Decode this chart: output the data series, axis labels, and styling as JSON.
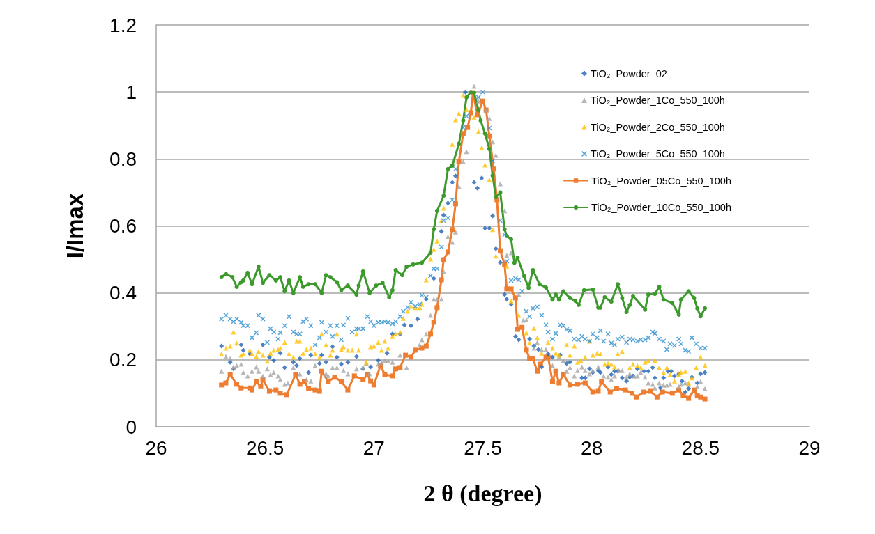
{
  "chart_data": {
    "type": "scatter",
    "xlabel": "2 θ (degree)",
    "ylabel": "I/Imax",
    "xlim": [
      26,
      29
    ],
    "xticks": [
      26,
      26.5,
      27,
      27.5,
      28,
      28.5,
      29
    ],
    "ylim": [
      0,
      1.2
    ],
    "yticks": [
      0,
      0.2,
      0.4,
      0.6,
      0.8,
      1,
      1.2
    ],
    "grid": "y",
    "legend": "top right",
    "series": [
      {
        "name": "TiO₂_Powder_02",
        "marker": "diamond",
        "color": "#1f63b5",
        "x": [
          26.3,
          26.34,
          26.355,
          26.39,
          26.4,
          26.43,
          26.49,
          26.52,
          26.54,
          26.57,
          26.59,
          26.63,
          26.645,
          26.66,
          26.7,
          26.71,
          26.75,
          26.76,
          26.78,
          26.81,
          26.83,
          26.85,
          26.88,
          26.92,
          26.95,
          26.985,
          27.02,
          27.06,
          27.085,
          27.12,
          27.14,
          27.17,
          27.2,
          27.24,
          27.275,
          27.31,
          27.32,
          27.34,
          27.36,
          27.375,
          27.42,
          27.46,
          27.475,
          27.495,
          27.51,
          27.53,
          27.545,
          27.56,
          27.58,
          27.6,
          27.61,
          27.63,
          27.65,
          27.665,
          27.715,
          27.735,
          27.755,
          27.77,
          27.8,
          27.82,
          27.855,
          27.885,
          27.9,
          27.955,
          27.97,
          27.99,
          28.005,
          28.03,
          28.04,
          28.075,
          28.09,
          28.105,
          28.12,
          28.14,
          28.16,
          28.175,
          28.19,
          28.21,
          28.24,
          28.26,
          28.28,
          28.29,
          28.315,
          28.33,
          28.35,
          28.365,
          28.38,
          28.4,
          28.415,
          28.43,
          28.445,
          28.46,
          28.485,
          28.5,
          28.52
        ],
        "values": [
          0.241,
          0.193,
          0.173,
          0.245,
          0.229,
          0.218,
          0.245,
          0.208,
          0.198,
          0.22,
          0.177,
          0.193,
          0.183,
          0.204,
          0.162,
          0.214,
          0.189,
          0.214,
          0.193,
          0.239,
          0.208,
          0.187,
          0.193,
          0.21,
          0.173,
          0.179,
          0.198,
          0.22,
          0.277,
          0.277,
          0.304,
          0.302,
          0.322,
          0.381,
          0.443,
          0.584,
          0.632,
          0.668,
          0.73,
          0.749,
          1.0,
          0.73,
          0.713,
          0.743,
          0.593,
          0.593,
          0.63,
          0.532,
          0.491,
          0.395,
          0.381,
          0.366,
          0.27,
          0.26,
          0.262,
          0.241,
          0.231,
          0.179,
          0.218,
          0.208,
          0.214,
          0.189,
          0.193,
          0.146,
          0.146,
          0.173,
          0.162,
          0.168,
          0.162,
          0.179,
          0.156,
          0.166,
          0.166,
          0.146,
          0.137,
          0.148,
          0.152,
          0.173,
          0.166,
          0.166,
          0.177,
          0.146,
          0.116,
          0.146,
          0.166,
          0.166,
          0.152,
          0.158,
          0.137,
          0.104,
          0.114,
          0.148,
          0.131,
          0.158,
          0.162
        ]
      },
      {
        "name": "TiO₂_Powder_1Co_550_100h",
        "marker": "triangle",
        "color": "#a5a5a5",
        "x": [
          26.3,
          26.32,
          26.34,
          26.355,
          26.37,
          26.39,
          26.4,
          26.42,
          26.44,
          26.46,
          26.47,
          26.49,
          26.51,
          26.525,
          26.54,
          26.56,
          26.57,
          26.59,
          26.605,
          26.63,
          26.66,
          26.69,
          26.71,
          26.73,
          26.78,
          26.79,
          26.81,
          26.83,
          26.86,
          26.88,
          26.92,
          26.95,
          26.965,
          26.98,
          27.02,
          27.035,
          27.05,
          27.065,
          27.085,
          27.12,
          27.15,
          27.21,
          27.22,
          27.24,
          27.26,
          27.275,
          27.29,
          27.31,
          27.32,
          27.34,
          27.36,
          27.375,
          27.39,
          27.41,
          27.425,
          27.46,
          27.48,
          27.515,
          27.53,
          27.545,
          27.56,
          27.58,
          27.6,
          27.61,
          27.63,
          27.665,
          27.685,
          27.7,
          27.735,
          27.75,
          27.77,
          27.79,
          27.82,
          27.85,
          27.87,
          27.885,
          27.9,
          27.92,
          27.935,
          27.955,
          27.97,
          27.99,
          28.005,
          28.03,
          28.055,
          28.075,
          28.09,
          28.105,
          28.125,
          28.14,
          28.16,
          28.175,
          28.195,
          28.21,
          28.225,
          28.245,
          28.26,
          28.28,
          28.29,
          28.31,
          28.33,
          28.345,
          28.36,
          28.4,
          28.41,
          28.43,
          28.445,
          28.485,
          28.5,
          28.52
        ],
        "values": [
          0.166,
          0.21,
          0.204,
          0.179,
          0.183,
          0.187,
          0.162,
          0.152,
          0.166,
          0.179,
          0.166,
          0.152,
          0.173,
          0.156,
          0.162,
          0.152,
          0.141,
          0.127,
          0.131,
          0.177,
          0.158,
          0.141,
          0.137,
          0.183,
          0.158,
          0.152,
          0.177,
          0.177,
          0.168,
          0.158,
          0.173,
          0.179,
          0.189,
          0.158,
          0.187,
          0.193,
          0.198,
          0.198,
          0.193,
          0.214,
          0.177,
          0.245,
          0.26,
          0.277,
          0.333,
          0.381,
          0.381,
          0.381,
          0.464,
          0.568,
          0.551,
          0.582,
          0.718,
          0.792,
          0.822,
          1.017,
          0.973,
          0.946,
          0.921,
          0.851,
          0.811,
          0.726,
          0.645,
          0.512,
          0.52,
          0.395,
          0.318,
          0.32,
          0.235,
          0.252,
          0.231,
          0.231,
          0.183,
          0.208,
          0.198,
          0.166,
          0.177,
          0.152,
          0.168,
          0.179,
          0.168,
          0.158,
          0.168,
          0.179,
          0.152,
          0.148,
          0.141,
          0.152,
          0.168,
          0.168,
          0.148,
          0.158,
          0.152,
          0.152,
          0.162,
          0.148,
          0.131,
          0.127,
          0.116,
          0.131,
          0.125,
          0.125,
          0.127,
          0.12,
          0.127,
          0.131,
          0.127,
          0.12,
          0.135,
          0.114
        ]
      },
      {
        "name": "TiO₂_Powder_2Co_550_100h",
        "marker": "triangle",
        "color": "#ffc000",
        "x": [
          26.3,
          26.32,
          26.34,
          26.355,
          26.37,
          26.39,
          26.4,
          26.43,
          26.44,
          26.46,
          26.47,
          26.49,
          26.51,
          26.525,
          26.54,
          26.56,
          26.57,
          26.59,
          26.61,
          26.63,
          26.645,
          26.66,
          26.675,
          26.69,
          26.71,
          26.73,
          26.75,
          26.76,
          26.78,
          26.8,
          26.81,
          26.83,
          26.85,
          26.86,
          26.88,
          26.9,
          26.92,
          26.93,
          26.965,
          26.985,
          27.0,
          27.02,
          27.035,
          27.05,
          27.065,
          27.085,
          27.1,
          27.12,
          27.135,
          27.155,
          27.17,
          27.19,
          27.21,
          27.22,
          27.24,
          27.26,
          27.275,
          27.29,
          27.31,
          27.32,
          27.36,
          27.375,
          27.39,
          27.41,
          27.425,
          27.46,
          27.48,
          27.495,
          27.51,
          27.53,
          27.545,
          27.56,
          27.61,
          27.63,
          27.665,
          27.7,
          27.715,
          27.735,
          27.75,
          27.77,
          27.8,
          27.82,
          27.835,
          27.85,
          27.885,
          27.9,
          27.92,
          27.935,
          27.95,
          27.97,
          27.99,
          28.005,
          28.025,
          28.04,
          28.06,
          28.075,
          28.09,
          28.105,
          28.12,
          28.14,
          28.175,
          28.19,
          28.21,
          28.225,
          28.245,
          28.26,
          28.29,
          28.31,
          28.33,
          28.345,
          28.36,
          28.38,
          28.4,
          28.41,
          28.43,
          28.445,
          28.46,
          28.48,
          28.5,
          28.52
        ],
        "values": [
          0.218,
          0.235,
          0.241,
          0.283,
          0.25,
          0.214,
          0.218,
          0.229,
          0.218,
          0.21,
          0.225,
          0.214,
          0.196,
          0.22,
          0.229,
          0.231,
          0.235,
          0.252,
          0.218,
          0.208,
          0.256,
          0.256,
          0.22,
          0.231,
          0.235,
          0.218,
          0.208,
          0.277,
          0.245,
          0.214,
          0.229,
          0.277,
          0.231,
          0.239,
          0.229,
          0.229,
          0.277,
          0.229,
          0.193,
          0.239,
          0.241,
          0.252,
          0.229,
          0.256,
          0.235,
          0.27,
          0.277,
          0.283,
          0.324,
          0.345,
          0.36,
          0.356,
          0.356,
          0.366,
          0.439,
          0.501,
          0.53,
          0.555,
          0.616,
          0.653,
          0.844,
          0.917,
          0.936,
          0.99,
          0.948,
          0.925,
          0.882,
          0.834,
          0.782,
          0.738,
          0.589,
          0.51,
          0.48,
          0.376,
          0.333,
          0.281,
          0.25,
          0.295,
          0.266,
          0.22,
          0.252,
          0.235,
          0.22,
          0.214,
          0.245,
          0.214,
          0.241,
          0.193,
          0.198,
          0.208,
          0.256,
          0.214,
          0.22,
          0.218,
          0.187,
          0.189,
          0.187,
          0.179,
          0.218,
          0.225,
          0.177,
          0.187,
          0.183,
          0.177,
          0.193,
          0.198,
          0.198,
          0.177,
          0.162,
          0.177,
          0.156,
          0.137,
          0.156,
          0.162,
          0.166,
          0.131,
          0.146,
          0.177,
          0.208,
          0.183
        ]
      },
      {
        "name": "TiO₂_Powder_5Co_550_100h",
        "marker": "cross",
        "color": "#2e8fd0",
        "x": [
          26.3,
          26.32,
          26.34,
          26.355,
          26.37,
          26.39,
          26.4,
          26.42,
          26.44,
          26.46,
          26.47,
          26.49,
          26.51,
          26.525,
          26.54,
          26.56,
          26.57,
          26.59,
          26.61,
          26.63,
          26.645,
          26.66,
          26.675,
          26.69,
          26.71,
          26.73,
          26.75,
          26.76,
          26.78,
          26.8,
          26.81,
          26.83,
          26.85,
          26.86,
          26.88,
          26.9,
          26.92,
          26.93,
          26.95,
          26.97,
          26.985,
          27.0,
          27.02,
          27.035,
          27.05,
          27.065,
          27.085,
          27.1,
          27.12,
          27.135,
          27.155,
          27.17,
          27.19,
          27.21,
          27.22,
          27.24,
          27.26,
          27.275,
          27.29,
          27.31,
          27.32,
          27.34,
          27.36,
          27.375,
          27.41,
          27.425,
          27.48,
          27.5,
          27.53,
          27.545,
          27.58,
          27.6,
          27.61,
          27.63,
          27.65,
          27.665,
          27.68,
          27.7,
          27.715,
          27.73,
          27.75,
          27.77,
          27.79,
          27.8,
          27.82,
          27.835,
          27.855,
          27.87,
          27.885,
          27.9,
          27.92,
          27.94,
          27.955,
          27.97,
          27.99,
          28.005,
          28.025,
          28.04,
          28.055,
          28.075,
          28.09,
          28.105,
          28.12,
          28.14,
          28.16,
          28.175,
          28.19,
          28.21,
          28.225,
          28.245,
          28.26,
          28.28,
          28.29,
          28.31,
          28.33,
          28.345,
          28.36,
          28.38,
          28.4,
          28.41,
          28.43,
          28.445,
          28.46,
          28.48,
          28.5,
          28.52
        ],
        "values": [
          0.322,
          0.333,
          0.322,
          0.314,
          0.322,
          0.312,
          0.302,
          0.302,
          0.266,
          0.281,
          0.333,
          0.322,
          0.252,
          0.293,
          0.283,
          0.262,
          0.281,
          0.302,
          0.329,
          0.283,
          0.277,
          0.277,
          0.314,
          0.322,
          0.302,
          0.245,
          0.266,
          0.312,
          0.283,
          0.302,
          0.27,
          0.302,
          0.26,
          0.304,
          0.324,
          0.283,
          0.293,
          0.293,
          0.293,
          0.329,
          0.314,
          0.302,
          0.312,
          0.312,
          0.314,
          0.312,
          0.308,
          0.314,
          0.329,
          0.345,
          0.356,
          0.372,
          0.36,
          0.366,
          0.393,
          0.387,
          0.451,
          0.472,
          0.472,
          0.537,
          0.616,
          0.624,
          0.678,
          0.77,
          0.894,
          0.928,
          0.984,
          1.0,
          0.892,
          0.795,
          0.616,
          0.574,
          0.495,
          0.437,
          0.443,
          0.439,
          0.405,
          0.345,
          0.329,
          0.354,
          0.358,
          0.333,
          0.304,
          0.283,
          0.262,
          0.279,
          0.304,
          0.302,
          0.291,
          0.287,
          0.262,
          0.26,
          0.27,
          0.262,
          0.256,
          0.277,
          0.266,
          0.287,
          0.256,
          0.277,
          0.25,
          0.245,
          0.262,
          0.268,
          0.252,
          0.262,
          0.26,
          0.256,
          0.26,
          0.26,
          0.266,
          0.283,
          0.279,
          0.262,
          0.256,
          0.231,
          0.248,
          0.243,
          0.262,
          0.248,
          0.229,
          0.225,
          0.266,
          0.248,
          0.235,
          0.235
        ]
      },
      {
        "name": "TiO₂_Powder_05Co_550_100h",
        "type": "line",
        "marker": "square",
        "color": "#ed7d31",
        "x": [
          26.3,
          26.32,
          26.34,
          26.37,
          26.39,
          26.43,
          26.44,
          26.46,
          26.48,
          26.49,
          26.52,
          26.55,
          26.57,
          26.6,
          26.64,
          26.66,
          26.68,
          26.7,
          26.73,
          26.75,
          26.76,
          26.79,
          26.82,
          26.85,
          26.88,
          26.91,
          26.95,
          26.97,
          26.985,
          27.0,
          27.03,
          27.05,
          27.085,
          27.1,
          27.12,
          27.145,
          27.17,
          27.19,
          27.22,
          27.24,
          27.26,
          27.275,
          27.29,
          27.31,
          27.32,
          27.34,
          27.36,
          27.375,
          27.39,
          27.41,
          27.43,
          27.445,
          27.455,
          27.475,
          27.5,
          27.515,
          27.53,
          27.55,
          27.565,
          27.58,
          27.6,
          27.61,
          27.63,
          27.65,
          27.66,
          27.68,
          27.7,
          27.715,
          27.73,
          27.75,
          27.765,
          27.79,
          27.8,
          27.82,
          27.835,
          27.85,
          27.87,
          27.9,
          27.935,
          27.97,
          28.005,
          28.03,
          28.045,
          28.085,
          28.115,
          28.155,
          28.185,
          28.205,
          28.24,
          28.27,
          28.3,
          28.325,
          28.37,
          28.4,
          28.42,
          28.445,
          28.47,
          28.485,
          28.5,
          28.52
        ],
        "values": [
          0.125,
          0.131,
          0.156,
          0.127,
          0.116,
          0.116,
          0.11,
          0.135,
          0.12,
          0.141,
          0.106,
          0.11,
          0.1,
          0.096,
          0.156,
          0.127,
          0.135,
          0.114,
          0.11,
          0.106,
          0.166,
          0.135,
          0.148,
          0.135,
          0.11,
          0.152,
          0.141,
          0.156,
          0.137,
          0.125,
          0.183,
          0.156,
          0.152,
          0.173,
          0.177,
          0.214,
          0.208,
          0.229,
          0.235,
          0.241,
          0.277,
          0.312,
          0.356,
          0.439,
          0.499,
          0.522,
          0.589,
          0.666,
          0.792,
          0.876,
          0.894,
          0.938,
          0.998,
          0.932,
          0.973,
          0.946,
          0.869,
          0.77,
          0.678,
          0.526,
          0.485,
          0.412,
          0.412,
          0.385,
          0.291,
          0.297,
          0.229,
          0.204,
          0.204,
          0.166,
          0.187,
          0.208,
          0.208,
          0.135,
          0.166,
          0.131,
          0.156,
          0.125,
          0.127,
          0.131,
          0.104,
          0.106,
          0.135,
          0.104,
          0.114,
          0.11,
          0.1,
          0.089,
          0.104,
          0.106,
          0.089,
          0.104,
          0.1,
          0.11,
          0.094,
          0.085,
          0.11,
          0.094,
          0.089,
          0.083
        ]
      },
      {
        "name": "TiO₂_Powder_10Co_550_100h",
        "type": "line",
        "marker": "circle",
        "color": "#3c9a2c",
        "x": [
          26.3,
          26.32,
          26.35,
          26.37,
          26.39,
          26.4,
          26.42,
          26.44,
          26.47,
          26.49,
          26.52,
          26.55,
          26.57,
          26.59,
          26.61,
          26.63,
          26.66,
          26.675,
          26.7,
          26.73,
          26.76,
          26.78,
          26.8,
          26.83,
          26.85,
          26.88,
          26.92,
          26.93,
          26.95,
          26.98,
          27.01,
          27.04,
          27.07,
          27.085,
          27.1,
          27.13,
          27.15,
          27.18,
          27.22,
          27.26,
          27.275,
          27.29,
          27.32,
          27.34,
          27.36,
          27.39,
          27.41,
          27.425,
          27.445,
          27.46,
          27.48,
          27.49,
          27.51,
          27.53,
          27.545,
          27.56,
          27.58,
          27.6,
          27.61,
          27.63,
          27.645,
          27.66,
          27.69,
          27.71,
          27.73,
          27.76,
          27.79,
          27.82,
          27.835,
          27.85,
          27.87,
          27.9,
          27.925,
          27.94,
          27.965,
          28.005,
          28.03,
          28.04,
          28.06,
          28.09,
          28.12,
          28.14,
          28.16,
          28.175,
          28.19,
          28.245,
          28.26,
          28.29,
          28.31,
          28.33,
          28.37,
          28.4,
          28.41,
          28.445,
          28.47,
          28.485,
          28.5,
          28.52
        ],
        "values": [
          0.447,
          0.457,
          0.447,
          0.418,
          0.432,
          0.437,
          0.46,
          0.426,
          0.478,
          0.43,
          0.453,
          0.437,
          0.447,
          0.405,
          0.437,
          0.4,
          0.447,
          0.418,
          0.426,
          0.426,
          0.4,
          0.453,
          0.447,
          0.432,
          0.408,
          0.422,
          0.395,
          0.422,
          0.464,
          0.4,
          0.422,
          0.43,
          0.387,
          0.408,
          0.468,
          0.453,
          0.478,
          0.485,
          0.49,
          0.52,
          0.59,
          0.645,
          0.69,
          0.77,
          0.78,
          0.845,
          0.915,
          0.984,
          1.0,
          0.998,
          0.946,
          0.915,
          0.876,
          0.83,
          0.75,
          0.686,
          0.7,
          0.59,
          0.57,
          0.56,
          0.49,
          0.505,
          0.45,
          0.415,
          0.468,
          0.426,
          0.416,
          0.38,
          0.395,
          0.38,
          0.405,
          0.385,
          0.376,
          0.364,
          0.408,
          0.41,
          0.356,
          0.356,
          0.387,
          0.374,
          0.426,
          0.385,
          0.343,
          0.364,
          0.391,
          0.35,
          0.395,
          0.397,
          0.418,
          0.38,
          0.37,
          0.335,
          0.38,
          0.405,
          0.385,
          0.354,
          0.33,
          0.354
        ]
      }
    ]
  }
}
